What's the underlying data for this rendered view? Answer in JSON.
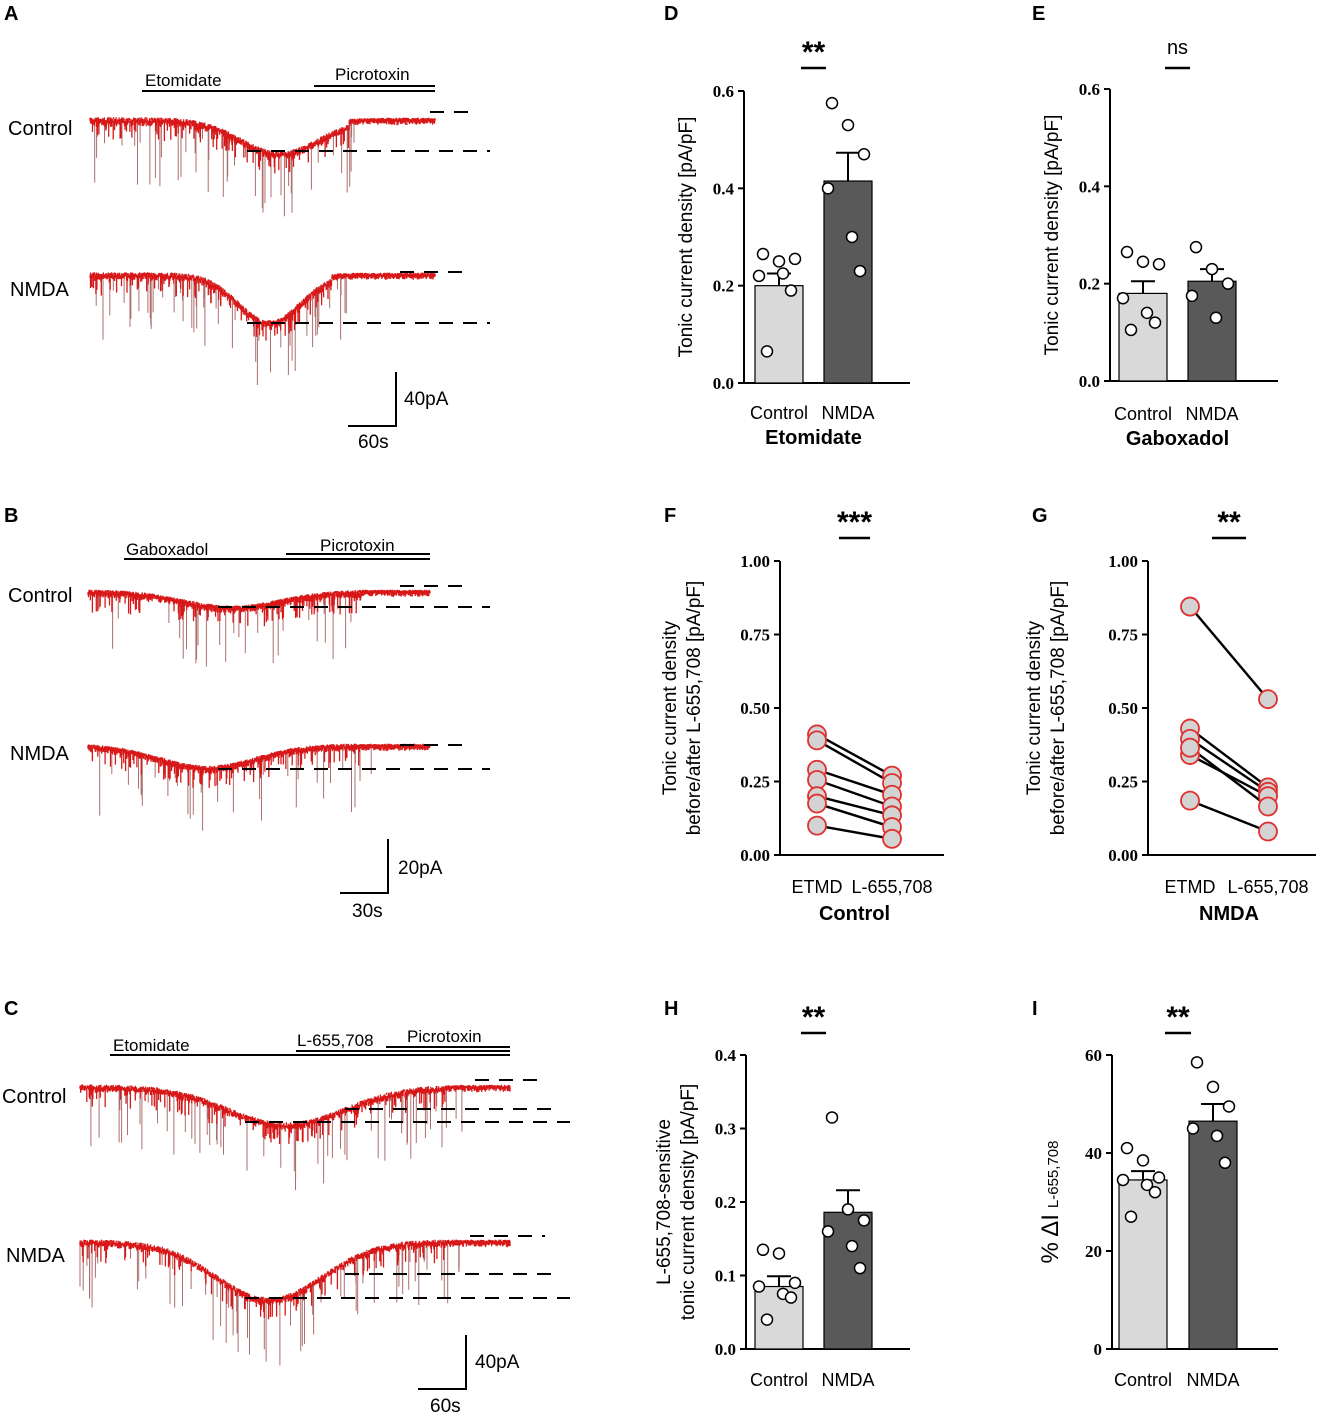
{
  "panels": {
    "A": {
      "letter": "A"
    },
    "B": {
      "letter": "B"
    },
    "C": {
      "letter": "C"
    },
    "D": {
      "letter": "D"
    },
    "E": {
      "letter": "E"
    },
    "F": {
      "letter": "F"
    },
    "G": {
      "letter": "G"
    },
    "H": {
      "letter": "H"
    },
    "I": {
      "letter": "I"
    }
  },
  "traces": {
    "A": {
      "drug1": "Etomidate",
      "drug2": "Picrotoxin",
      "row1": "Control",
      "row2": "NMDA",
      "scale_y": "40pA",
      "scale_x": "60s"
    },
    "B": {
      "drug1": "Gaboxadol",
      "drug2": "Picrotoxin",
      "row1": "Control",
      "row2": "NMDA",
      "scale_y": "20pA",
      "scale_x": "30s"
    },
    "C": {
      "drug1": "Etomidate",
      "drug2": "L-655,708",
      "drug3": "Picrotoxin",
      "row1": "Control",
      "row2": "NMDA",
      "scale_y": "40pA",
      "scale_x": "60s"
    }
  },
  "chart_data": [
    {
      "id": "D",
      "type": "bar",
      "title": "Etomidate",
      "ylabel": "Tonic current density [pA/pF]",
      "categories": [
        "Control",
        "NMDA"
      ],
      "values": [
        0.2,
        0.415
      ],
      "sem": [
        0.025,
        0.058
      ],
      "points": [
        [
          0.265,
          0.25,
          0.255,
          0.22,
          0.225,
          0.19,
          0.065
        ],
        [
          0.575,
          0.53,
          0.47,
          0.4,
          0.3,
          0.23
        ]
      ],
      "ylim": [
        0,
        0.6
      ],
      "yticks": [
        "0.0",
        "0.2",
        "0.4",
        "0.6"
      ],
      "significance": "**",
      "colors": [
        "#d9d9d9",
        "#595959"
      ]
    },
    {
      "id": "E",
      "type": "bar",
      "title": "Gaboxadol",
      "ylabel": "Tonic current density [pA/pF]",
      "categories": [
        "Control",
        "NMDA"
      ],
      "values": [
        0.18,
        0.205
      ],
      "sem": [
        0.025,
        0.025
      ],
      "points": [
        [
          0.265,
          0.245,
          0.24,
          0.17,
          0.14,
          0.12,
          0.105
        ],
        [
          0.275,
          0.23,
          0.2,
          0.175,
          0.13
        ]
      ],
      "ylim": [
        0,
        0.6
      ],
      "yticks": [
        "0.0",
        "0.2",
        "0.4",
        "0.6"
      ],
      "significance": "ns",
      "colors": [
        "#d9d9d9",
        "#595959"
      ]
    },
    {
      "id": "F",
      "type": "paired",
      "title": "Control",
      "ylabel_lines": [
        "Tonic current density",
        "before/after L-655,708 [pA/pF]"
      ],
      "categories": [
        "ETMD",
        "L-655,708"
      ],
      "pairs": [
        [
          0.41,
          0.27
        ],
        [
          0.39,
          0.245
        ],
        [
          0.29,
          0.205
        ],
        [
          0.255,
          0.165
        ],
        [
          0.2,
          0.135
        ],
        [
          0.175,
          0.095
        ],
        [
          0.1,
          0.055
        ]
      ],
      "ylim": [
        0,
        1.0
      ],
      "yticks": [
        "0.00",
        "0.25",
        "0.50",
        "0.75",
        "1.00"
      ],
      "significance": "***",
      "marker_fill": "#d3d3d3",
      "marker_edge": "#e03030"
    },
    {
      "id": "G",
      "type": "paired",
      "title": "NMDA",
      "ylabel_lines": [
        "Tonic current density",
        "before/after L-655,708 [pA/pF]"
      ],
      "categories": [
        "ETMD",
        "L-655,708"
      ],
      "pairs": [
        [
          0.845,
          0.53
        ],
        [
          0.43,
          0.23
        ],
        [
          0.395,
          0.215
        ],
        [
          0.34,
          0.2
        ],
        [
          0.185,
          0.08
        ],
        [
          0.365,
          0.165
        ]
      ],
      "ylim": [
        0,
        1.0
      ],
      "yticks": [
        "0.00",
        "0.25",
        "0.50",
        "0.75",
        "1.00"
      ],
      "significance": "**",
      "marker_fill": "#d3d3d3",
      "marker_edge": "#e03030"
    },
    {
      "id": "H",
      "type": "bar",
      "ylabel_lines": [
        "L-655,708-sensitive",
        "tonic current density [pA/pF]"
      ],
      "categories": [
        "Control",
        "NMDA"
      ],
      "values": [
        0.085,
        0.186
      ],
      "sem": [
        0.014,
        0.03
      ],
      "points": [
        [
          0.135,
          0.13,
          0.09,
          0.085,
          0.075,
          0.07,
          0.04
        ],
        [
          0.315,
          0.19,
          0.175,
          0.16,
          0.14,
          0.11
        ]
      ],
      "ylim": [
        0,
        0.4
      ],
      "yticks": [
        "0.0",
        "0.1",
        "0.2",
        "0.3",
        "0.4"
      ],
      "significance": "**",
      "colors": [
        "#d9d9d9",
        "#595959"
      ]
    },
    {
      "id": "I",
      "type": "bar",
      "ylabel": "% ΔI",
      "ylabel_sub": "L-655,708",
      "categories": [
        "Control",
        "NMDA"
      ],
      "values": [
        34.5,
        46.5
      ],
      "sem": [
        1.8,
        3.5
      ],
      "points": [
        [
          41,
          38.5,
          35,
          34.5,
          33.5,
          32,
          27
        ],
        [
          58.5,
          53.5,
          49.5,
          45,
          43.5,
          38
        ]
      ],
      "ylim": [
        0,
        60
      ],
      "yticks": [
        "0",
        "20",
        "40",
        "60"
      ],
      "significance": "**",
      "colors": [
        "#d9d9d9",
        "#595959"
      ]
    }
  ]
}
